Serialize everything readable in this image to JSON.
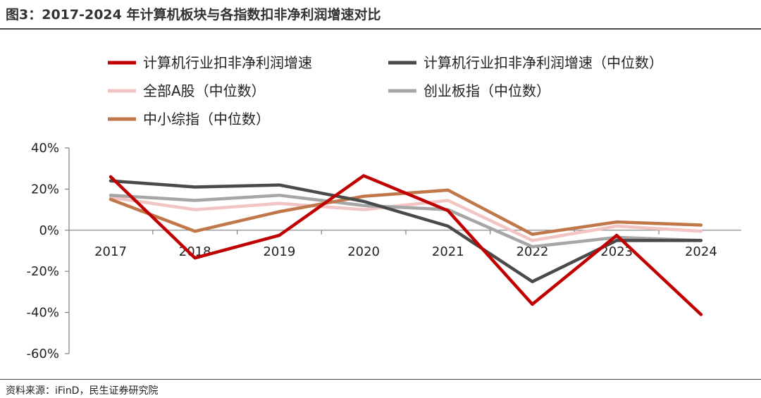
{
  "figure": {
    "title": "图3：2017-2024 年计算机板块与各指数扣非净利润增速对比",
    "source": "资料来源：iFinD，民生证券研究院"
  },
  "chart_data": {
    "type": "line",
    "title": "图3：2017-2024 年计算机板块与各指数扣非净利润增速对比",
    "xlabel": "",
    "ylabel": "",
    "categories": [
      "2017",
      "2018",
      "2019",
      "2020",
      "2021",
      "2022",
      "2023",
      "2024"
    ],
    "ylim": [
      -60,
      40
    ],
    "yticks": [
      40,
      20,
      0,
      -20,
      -40,
      -60
    ],
    "ytick_labels": [
      "40%",
      "20%",
      "0%",
      "-20%",
      "-40%",
      "-60%"
    ],
    "grid": false,
    "legend_position": "top",
    "series": [
      {
        "name": "计算机行业扣非净利润增速",
        "color": "#c00000",
        "values": [
          26,
          -13.5,
          -2.5,
          26.5,
          9.5,
          -36,
          -2.5,
          -41
        ]
      },
      {
        "name": "计算机行业扣非净利润增速（中位数）",
        "color": "#4a4a4a",
        "values": [
          24,
          21,
          22,
          14,
          2,
          -25,
          -5,
          -5
        ]
      },
      {
        "name": "全部A股（中位数）",
        "color": "#f2c4c4",
        "values": [
          16,
          10,
          13,
          10,
          14.5,
          -5,
          2,
          -0.5
        ]
      },
      {
        "name": "创业板指（中位数）",
        "color": "#a6a6a6",
        "values": [
          17,
          14.5,
          17,
          12,
          10,
          -8,
          -3.5,
          -5
        ]
      },
      {
        "name": "中小综指（中位数）",
        "color": "#c0784a",
        "values": [
          15,
          -0.5,
          9,
          16.5,
          19.5,
          -2,
          4,
          2.5
        ]
      }
    ]
  }
}
